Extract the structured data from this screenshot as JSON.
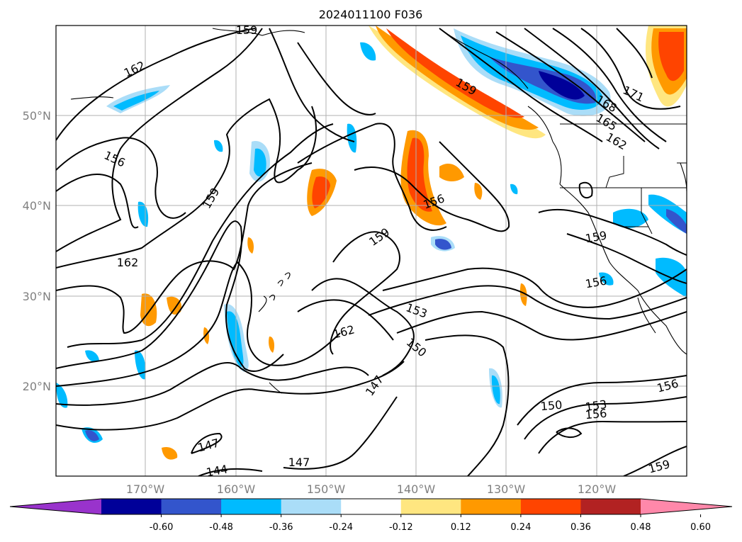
{
  "title": "2024011100 F036",
  "lat_labels": [
    "50°N",
    "40°N",
    "30°N",
    "20°N"
  ],
  "lon_labels": [
    "170°W",
    "160°W",
    "150°W",
    "140°W",
    "130°W",
    "120°W"
  ],
  "contour_labels": [
    "162",
    "156",
    "159",
    "162",
    "159",
    "156",
    "159",
    "162",
    "153",
    "150",
    "147",
    "159",
    "168",
    "165",
    "162",
    "171",
    "159",
    "156",
    "150",
    "153",
    "156",
    "156",
    "159",
    "147",
    "147",
    "144",
    "159"
  ],
  "colorbar": {
    "colors": [
      "#9933cc",
      "#000099",
      "#3355cc",
      "#00bbff",
      "#aaddf8",
      "#ffffff",
      "#ffe680",
      "#ff9900",
      "#ff4400",
      "#b22222",
      "#ff88aa"
    ],
    "ticks": [
      "-0.60",
      "-0.48",
      "-0.36",
      "-0.24",
      "-0.12",
      "0.12",
      "0.24",
      "0.36",
      "0.48",
      "0.60"
    ]
  }
}
